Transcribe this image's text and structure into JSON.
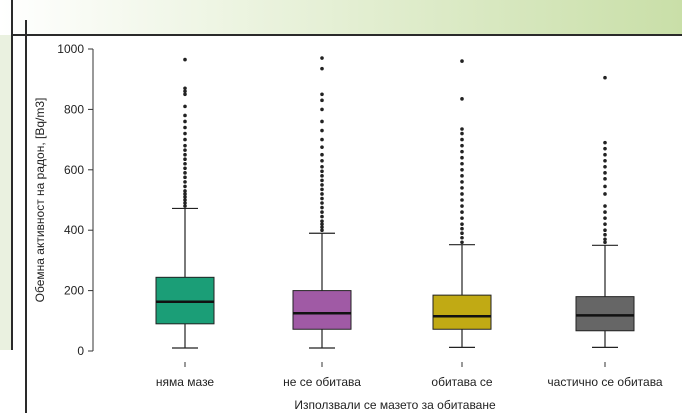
{
  "slide": {
    "colors": {
      "background": "#ffffff",
      "gradient_green": "#c9dfa8",
      "side_panel": "#eaf1e0",
      "frame": "#2a2a2a"
    }
  },
  "chart_data": {
    "type": "box",
    "title": "",
    "xlabel": "Използвали се мазето за обитаване",
    "ylabel": "Обемна активност на радон, [Bq/m3]",
    "ylim": [
      0,
      1000
    ],
    "yticks": [
      0,
      200,
      400,
      600,
      800,
      1000
    ],
    "grid": false,
    "categories": [
      "няма мазе",
      "не се обитава",
      "обитава се",
      "частично се обитава"
    ],
    "colors": [
      "#1b9e77",
      "#a05aa5",
      "#c1aa14",
      "#666666"
    ],
    "boxes": [
      {
        "whisker_low": 10,
        "q1": 90,
        "median": 163,
        "q3": 244,
        "whisker_high": 472,
        "outliers": [
          480,
          490,
          500,
          510,
          520,
          530,
          545,
          560,
          575,
          590,
          605,
          620,
          635,
          650,
          665,
          680,
          700,
          720,
          740,
          760,
          780,
          810,
          850,
          860,
          870,
          965
        ]
      },
      {
        "whisker_low": 10,
        "q1": 72,
        "median": 125,
        "q3": 200,
        "whisker_high": 390,
        "outliers": [
          400,
          410,
          420,
          430,
          445,
          460,
          475,
          490,
          505,
          520,
          535,
          550,
          565,
          580,
          595,
          610,
          630,
          650,
          675,
          700,
          730,
          760,
          800,
          830,
          850,
          935,
          970
        ]
      },
      {
        "whisker_low": 12,
        "q1": 72,
        "median": 115,
        "q3": 185,
        "whisker_high": 352,
        "outliers": [
          360,
          375,
          390,
          405,
          420,
          440,
          460,
          480,
          500,
          520,
          540,
          560,
          580,
          600,
          620,
          640,
          660,
          680,
          700,
          720,
          735,
          835,
          960
        ]
      },
      {
        "whisker_low": 12,
        "q1": 67,
        "median": 118,
        "q3": 180,
        "whisker_high": 350,
        "outliers": [
          360,
          370,
          385,
          400,
          420,
          440,
          460,
          480,
          520,
          545,
          570,
          590,
          610,
          630,
          650,
          670,
          690,
          905
        ]
      }
    ]
  }
}
